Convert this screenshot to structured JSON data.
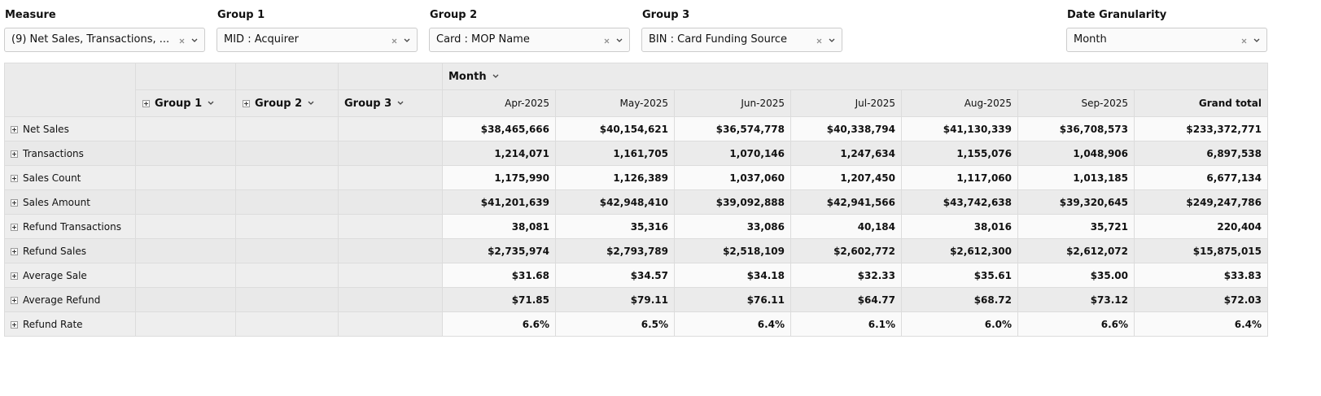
{
  "filters": [
    {
      "label": "Measure",
      "value": "(9) Net Sales, Transactions, ..."
    },
    {
      "label": "Group 1",
      "value": "MID : Acquirer"
    },
    {
      "label": "Group 2",
      "value": "Card : MOP Name"
    },
    {
      "label": "Group 3",
      "value": "BIN : Card Funding Source"
    },
    {
      "label": "Date Granularity",
      "value": "Month"
    }
  ],
  "table": {
    "column_group": "Month",
    "group_headers": [
      "Group 1",
      "Group 2",
      "Group 3"
    ],
    "columns": [
      "Apr-2025",
      "May-2025",
      "Jun-2025",
      "Jul-2025",
      "Aug-2025",
      "Sep-2025",
      "Grand total"
    ],
    "rows": [
      {
        "label": "Net Sales",
        "values": [
          "$38,465,666",
          "$40,154,621",
          "$36,574,778",
          "$40,338,794",
          "$41,130,339",
          "$36,708,573",
          "$233,372,771"
        ]
      },
      {
        "label": "Transactions",
        "values": [
          "1,214,071",
          "1,161,705",
          "1,070,146",
          "1,247,634",
          "1,155,076",
          "1,048,906",
          "6,897,538"
        ]
      },
      {
        "label": "Sales Count",
        "values": [
          "1,175,990",
          "1,126,389",
          "1,037,060",
          "1,207,450",
          "1,117,060",
          "1,013,185",
          "6,677,134"
        ]
      },
      {
        "label": "Sales Amount",
        "values": [
          "$41,201,639",
          "$42,948,410",
          "$39,092,888",
          "$42,941,566",
          "$43,742,638",
          "$39,320,645",
          "$249,247,786"
        ]
      },
      {
        "label": "Refund Transactions",
        "values": [
          "38,081",
          "35,316",
          "33,086",
          "40,184",
          "38,016",
          "35,721",
          "220,404"
        ]
      },
      {
        "label": "Refund Sales",
        "values": [
          "$2,735,974",
          "$2,793,789",
          "$2,518,109",
          "$2,602,772",
          "$2,612,300",
          "$2,612,072",
          "$15,875,015"
        ]
      },
      {
        "label": "Average Sale",
        "values": [
          "$31.68",
          "$34.57",
          "$34.18",
          "$32.33",
          "$35.61",
          "$35.00",
          "$33.83"
        ]
      },
      {
        "label": "Average Refund",
        "values": [
          "$71.85",
          "$79.11",
          "$76.11",
          "$64.77",
          "$68.72",
          "$73.12",
          "$72.03"
        ]
      },
      {
        "label": "Refund Rate",
        "values": [
          "6.6%",
          "6.5%",
          "6.4%",
          "6.1%",
          "6.0%",
          "6.6%",
          "6.4%"
        ]
      }
    ]
  }
}
